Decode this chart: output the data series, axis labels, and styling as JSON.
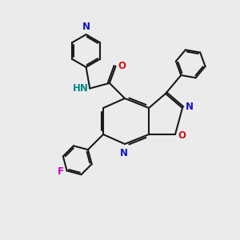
{
  "bg_color": "#ebebeb",
  "bond_color": "#1a1a1a",
  "N_color": "#1414cc",
  "O_color": "#cc1414",
  "F_color": "#cc00cc",
  "NH_color": "#008888",
  "lw": 1.5,
  "xlim": [
    0,
    10
  ],
  "ylim": [
    0,
    10
  ]
}
